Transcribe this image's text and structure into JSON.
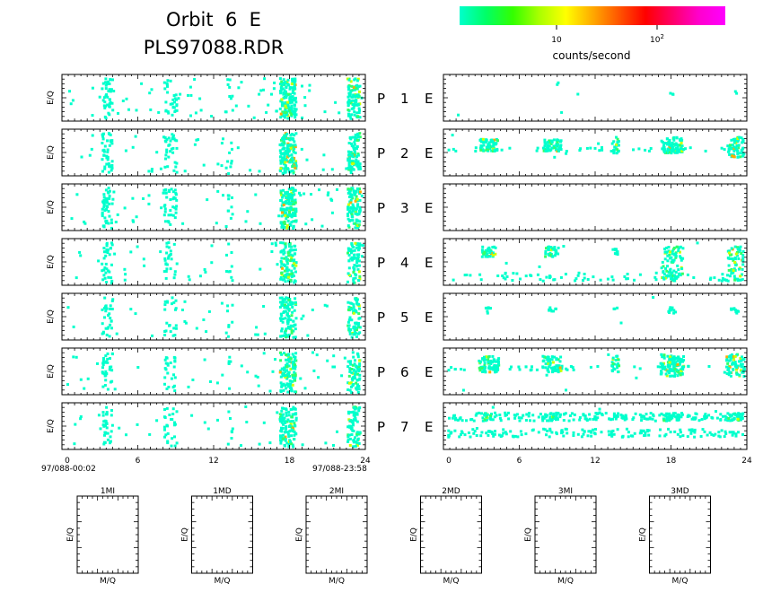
{
  "header": {
    "title_line1": "Orbit  6  E",
    "title_line2": "PLS97088.RDR"
  },
  "colorbar": {
    "label": "counts/second",
    "tick_10": "10",
    "tick_100_base": "10",
    "tick_100_exp": "2",
    "colors": [
      "#00ffcc",
      "#00ff66",
      "#33ff00",
      "#aaff00",
      "#ffff00",
      "#ffaa00",
      "#ff5500",
      "#ff0000",
      "#ff0066",
      "#ff00cc",
      "#ff00ff"
    ]
  },
  "panels": {
    "ylabel": "E/Q",
    "row_labels": [
      {
        "p": "P",
        "n": "1",
        "e": "E"
      },
      {
        "p": "P",
        "n": "2",
        "e": "E"
      },
      {
        "p": "P",
        "n": "3",
        "e": "E"
      },
      {
        "p": "P",
        "n": "4",
        "e": "E"
      },
      {
        "p": "P",
        "n": "5",
        "e": "E"
      },
      {
        "p": "P",
        "n": "6",
        "e": "E"
      },
      {
        "p": "P",
        "n": "7",
        "e": "E"
      }
    ],
    "x_ticks": [
      "0",
      "6",
      "12",
      "18",
      "24"
    ],
    "start_time": "97/088-00:02",
    "end_time": "97/088-23:58"
  },
  "mass_panels": {
    "ylabel": "E/Q",
    "xlabel": "M/Q",
    "titles": [
      "1MI",
      "1MD",
      "2MI",
      "2MD",
      "3MI",
      "3MD"
    ]
  },
  "chart_data": {
    "type": "heatmap",
    "x_axis": {
      "range": [
        0,
        24
      ],
      "ticks": [
        0,
        6,
        12,
        18,
        24
      ]
    },
    "color_scale": {
      "label": "counts/second",
      "ticks": [
        10,
        100
      ],
      "scale": "log"
    },
    "left_column_activity_hours": [
      3,
      8,
      13,
      18,
      23
    ],
    "right_column_rows_with_activity": [
      "P2",
      "P4",
      "P5",
      "P6",
      "P7"
    ],
    "right_column_active_hours": [
      3.5,
      8.5,
      13.5,
      18,
      23
    ],
    "empty_panels": [
      "P3 right",
      "1MI",
      "1MD",
      "2MI",
      "2MD",
      "3MI",
      "3MD"
    ]
  }
}
